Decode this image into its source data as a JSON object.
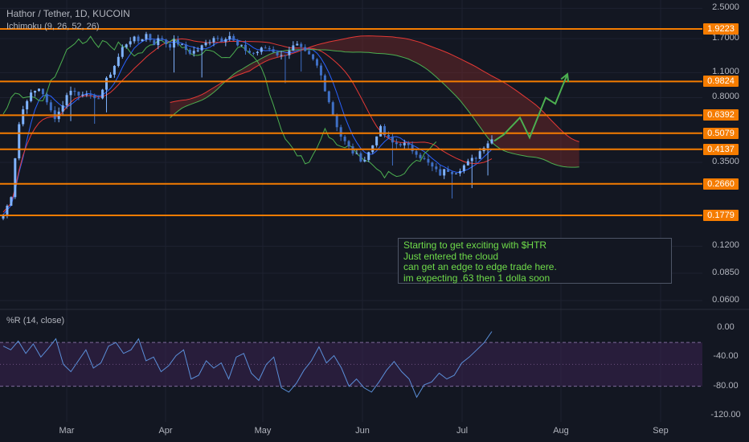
{
  "header": {
    "title": "Hathor / Tether, 1D, KUCOIN",
    "indicator": "Ichimoku (9, 26, 52, 26)",
    "osc_label": "%R (14, close)"
  },
  "colors": {
    "background": "#131722",
    "orange": "#f57c00",
    "candle": "#5b9cf6",
    "lagging": "#4caf50",
    "base": "#e53935",
    "cloud": "#7a2a2a",
    "oscillator": "#5b8fd9",
    "osc_band": "#3b2250",
    "annotation": "#6fdc4a",
    "arrow": "#4caf50"
  },
  "note": {
    "lines": [
      "Starting to get exciting with $HTR",
      "Just entered the cloud",
      "can get an edge to edge trade here.",
      "im expecting .63 then 1 dolla soon"
    ]
  },
  "chart_data": [
    {
      "type": "candlestick",
      "title": "Hathor / Tether, 1D, KUCOIN",
      "y_scale": "log",
      "y_ticks": [
        "2.5000",
        "1.7000",
        "1.1000",
        "0.8000",
        "0.3500",
        "0.1200",
        "0.0850",
        "0.0600"
      ],
      "x_ticks": [
        "Mar",
        "Apr",
        "May",
        "Jun",
        "Jul",
        "Aug",
        "Sep"
      ],
      "levels": [
        {
          "value": 1.9223,
          "label": "1.9223"
        },
        {
          "value": 0.9824,
          "label": "0.9824"
        },
        {
          "value": 0.6392,
          "label": "0.6392"
        },
        {
          "value": 0.5079,
          "label": "0.5079"
        },
        {
          "value": 0.4137,
          "label": "0.4137"
        },
        {
          "value": 0.266,
          "label": "0.2660"
        },
        {
          "value": 0.1779,
          "label": "0.1779"
        }
      ],
      "price_path": [
        0.18,
        0.22,
        0.55,
        0.78,
        0.85,
        0.92,
        0.7,
        0.62,
        0.75,
        0.9,
        0.82,
        0.88,
        0.75,
        0.85,
        1.05,
        1.25,
        1.55,
        1.7,
        1.65,
        1.8,
        1.6,
        1.72,
        1.55,
        1.65,
        1.5,
        1.42,
        1.48,
        1.6,
        1.75,
        1.68,
        1.8,
        1.55,
        1.5,
        1.4,
        1.45,
        1.52,
        1.45,
        1.35,
        1.48,
        1.56,
        1.42,
        1.32,
        1.15,
        0.85,
        0.62,
        0.48,
        0.42,
        0.38,
        0.36,
        0.42,
        0.55,
        0.48,
        0.44,
        0.45,
        0.42,
        0.4,
        0.36,
        0.33,
        0.3,
        0.32,
        0.31,
        0.33,
        0.35,
        0.38,
        0.44,
        0.47
      ],
      "projection": [
        {
          "date": "Jul 11",
          "price": 0.46
        },
        {
          "date": "Jul 14",
          "price": 0.5
        },
        {
          "date": "Jul 19",
          "price": 0.62
        },
        {
          "date": "Jul 22",
          "price": 0.48
        },
        {
          "date": "Jul 27",
          "price": 0.8
        },
        {
          "date": "Jul 30",
          "price": 0.74
        },
        {
          "date": "Aug 3",
          "price": 1.08
        }
      ]
    },
    {
      "type": "line",
      "title": "%R (14, close)",
      "ylim": [
        -120,
        0
      ],
      "y_ticks": [
        "0.00",
        "-40.00",
        "-80.00",
        "-120.00"
      ],
      "bands": [
        -20,
        -80
      ],
      "values": [
        -25,
        -30,
        -18,
        -35,
        -22,
        -40,
        -28,
        -15,
        -50,
        -60,
        -45,
        -30,
        -55,
        -48,
        -25,
        -20,
        -35,
        -30,
        -15,
        -45,
        -40,
        -60,
        -52,
        -38,
        -30,
        -70,
        -65,
        -45,
        -55,
        -48,
        -70,
        -40,
        -35,
        -62,
        -72,
        -50,
        -40,
        -82,
        -88,
        -76,
        -58,
        -45,
        -26,
        -48,
        -38,
        -55,
        -80,
        -70,
        -82,
        -88,
        -74,
        -58,
        -46,
        -60,
        -70,
        -95,
        -78,
        -74,
        -62,
        -70,
        -65,
        -48,
        -40,
        -30,
        -20,
        -5
      ]
    }
  ]
}
